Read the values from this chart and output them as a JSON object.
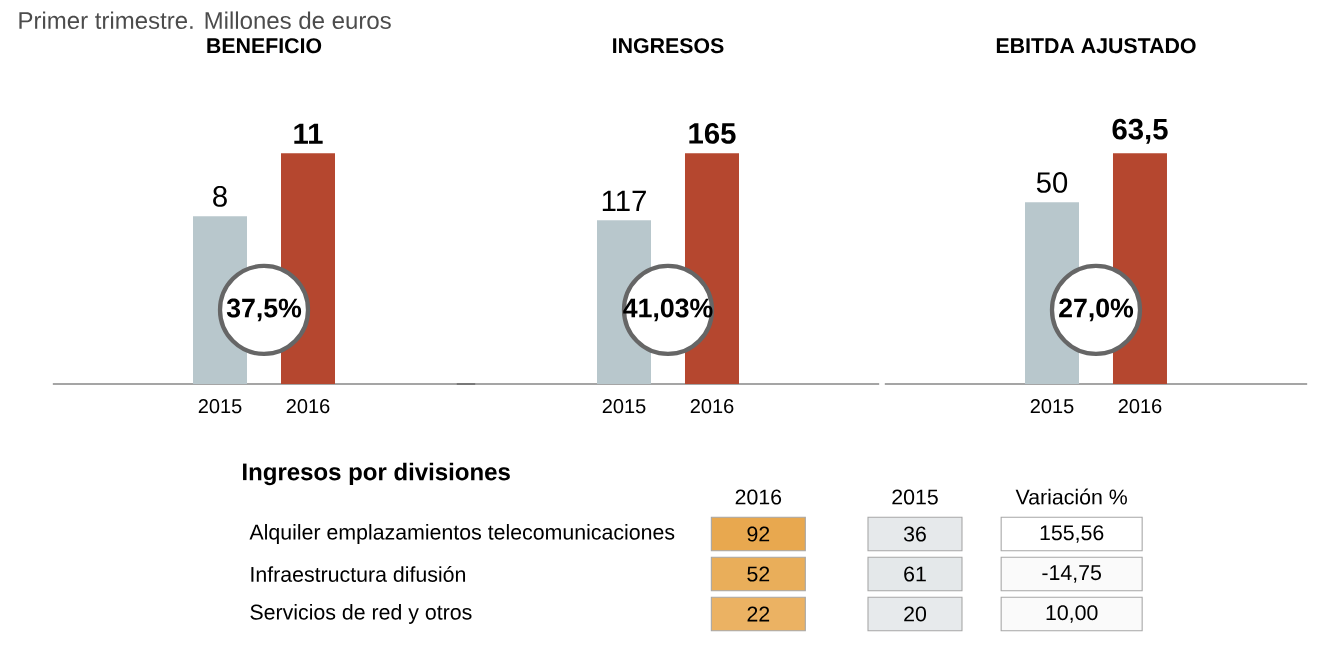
{
  "chart_data": [
    {
      "type": "bar",
      "subtitle": "Primer trimestre. Millones de euros",
      "title": "BENEFICIO",
      "categories": [
        "2015",
        "2016"
      ],
      "values": [
        8,
        11
      ],
      "colors": [
        "#b8c7cc",
        "#b5472f"
      ],
      "value_labels": [
        "8",
        "11"
      ],
      "annotations": [
        "37,5%"
      ]
    },
    {
      "type": "bar",
      "title": "INGRESOS",
      "categories": [
        "2015",
        "2016"
      ],
      "values": [
        117,
        165
      ],
      "colors": [
        "#b8c7cc",
        "#b5472f"
      ],
      "value_labels": [
        "117",
        "165"
      ],
      "annotations": [
        "41,03%"
      ]
    },
    {
      "type": "bar",
      "title": "EBITDA AJUSTADO",
      "categories": [
        "2015",
        "2016"
      ],
      "values": [
        50,
        63.5
      ],
      "colors": [
        "#b8c7cc",
        "#b5472f"
      ],
      "value_labels": [
        "50",
        "63,5"
      ],
      "annotations": [
        "27,0%"
      ]
    },
    {
      "type": "heatmap",
      "title": "Ingresos por divisiones",
      "categories": [
        "2016",
        "2015",
        "Variación %"
      ],
      "y_categories": [
        "Alquiler emplazamientos telecomunicaciones",
        "Infraestructura difusión",
        "Servicios de red y otros"
      ],
      "cells": [
        [
          92,
          36,
          155.56
        ],
        [
          52,
          61,
          -14.75
        ],
        [
          22,
          20,
          10.0
        ]
      ],
      "cell_labels": [
        [
          "92",
          "36",
          "155,56"
        ],
        [
          "52",
          "61",
          "-14,75"
        ],
        [
          "22",
          "20",
          "10,00"
        ]
      ]
    }
  ]
}
